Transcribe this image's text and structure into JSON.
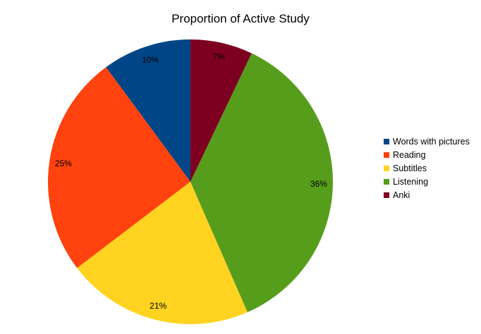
{
  "chart_data": {
    "type": "pie",
    "title": "Proportion of Active Study",
    "categories": [
      "Words with pictures",
      "Reading",
      "Subtitles",
      "Listening",
      "Anki"
    ],
    "values": [
      10,
      25,
      21,
      36,
      7
    ],
    "labels": [
      "10%",
      "25%",
      "21%",
      "36%",
      "7%"
    ],
    "colors": [
      "#004586",
      "#ff420e",
      "#ffd320",
      "#579d1c",
      "#7e0021"
    ],
    "legend_position": "right",
    "start_angle_deg": 0,
    "direction": "counterclockwise"
  }
}
